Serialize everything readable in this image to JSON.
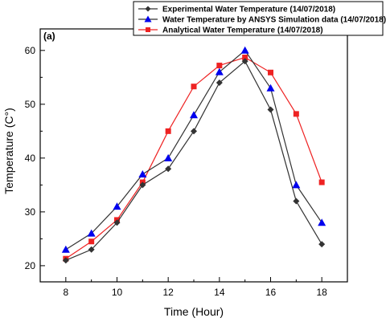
{
  "chart_data": {
    "type": "line",
    "panel_label": "(a)",
    "title": "",
    "xlabel": "Time (Hour)",
    "ylabel": "Temperature (C°)",
    "xlim": [
      7,
      19
    ],
    "ylim": [
      17,
      64
    ],
    "xticks": [
      8,
      10,
      12,
      14,
      16,
      18
    ],
    "yticks": [
      20,
      30,
      40,
      50,
      60
    ],
    "x": [
      8,
      9,
      10,
      11,
      12,
      13,
      14,
      15,
      16,
      17,
      18
    ],
    "legend_position": "top-right",
    "grid": false,
    "series": [
      {
        "name": "Experimental Water Temperature (14/07/2018)",
        "marker": "diamond",
        "color": "#333333",
        "values": [
          21,
          23,
          28,
          35,
          38,
          45,
          54,
          58,
          49,
          32,
          24
        ]
      },
      {
        "name": "Water Temperature by ANSYS Simulation data (14/07/2018)",
        "marker": "triangle",
        "color": "#0000ee",
        "line_color": "#333333",
        "values": [
          23,
          26,
          31,
          37,
          40,
          48,
          56,
          60,
          53,
          35,
          28
        ]
      },
      {
        "name": "Analytical Water Temperature (14/07/2018)",
        "marker": "square",
        "color": "#ee2222",
        "values": [
          21.3,
          24.5,
          28.5,
          35.5,
          45,
          53.3,
          57.2,
          58.7,
          55.9,
          48.2,
          35.5
        ]
      }
    ]
  }
}
